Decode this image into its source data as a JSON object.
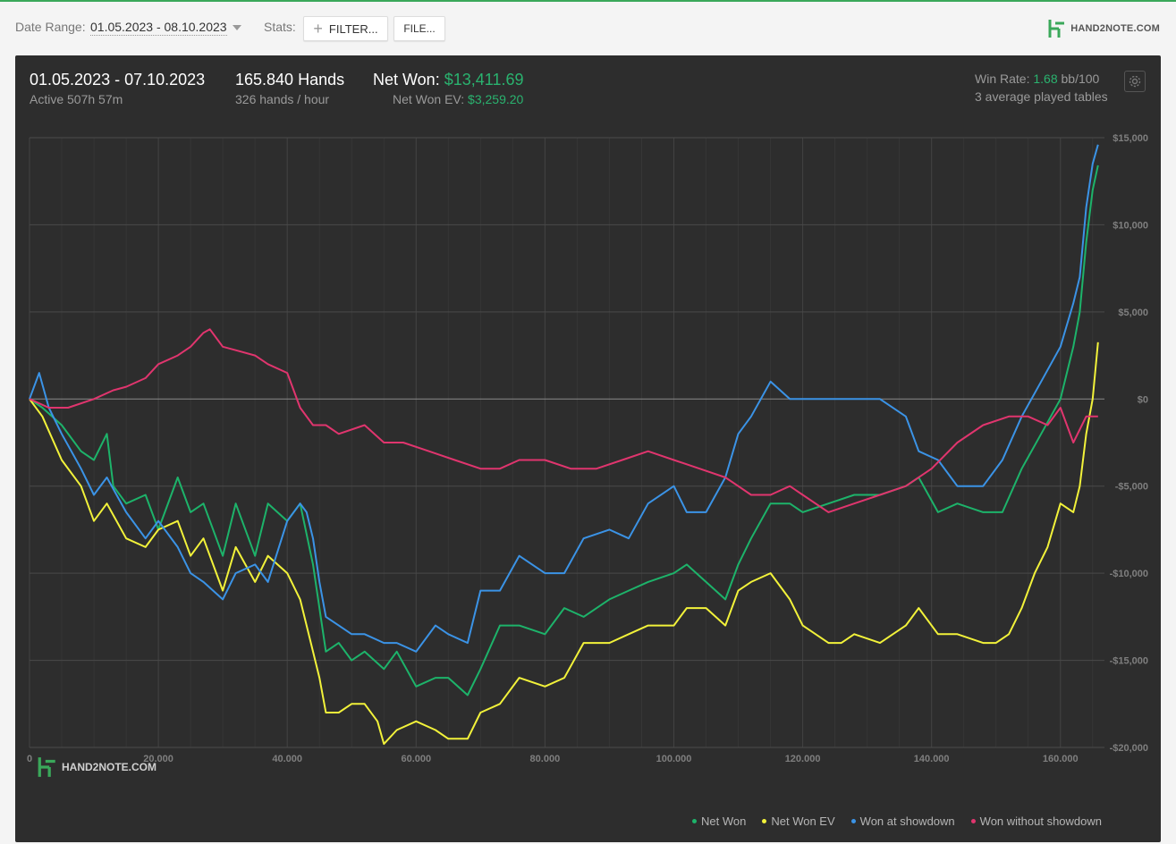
{
  "toolbar": {
    "date_range_label": "Date Range:",
    "date_range_value": "01.05.2023 - 08.10.2023",
    "stats_label": "Stats:",
    "filter_label": "FILTER...",
    "file_label": "FILE...",
    "brand_text": "HAND2NOTE.COM"
  },
  "summary": {
    "date_range": "01.05.2023 - 07.10.2023",
    "active": "Active 507h 57m",
    "hands": "165.840 Hands",
    "hands_per_hour": "326 hands / hour",
    "net_won_label": "Net Won:",
    "net_won_value": "$13,411.69",
    "net_won_ev_label": "Net Won  EV:",
    "net_won_ev_value": "$3,259.20",
    "win_rate_label": "Win Rate:",
    "win_rate_value": "1.68",
    "win_rate_unit": "bb/100",
    "tables_text": "3 average played tables"
  },
  "watermark_text": "HAND2NOTE.COM",
  "chart_data": {
    "type": "line",
    "xlabel": "",
    "ylabel": "",
    "xlim": [
      0,
      166000
    ],
    "ylim": [
      -20000,
      15000
    ],
    "x_ticks": [
      0,
      20000,
      40000,
      60000,
      80000,
      100000,
      120000,
      140000,
      160000
    ],
    "x_tick_labels": [
      "0",
      "20.000",
      "40.000",
      "60.000",
      "80.000",
      "100.000",
      "120.000",
      "140.000",
      "160.000"
    ],
    "y_ticks": [
      15000,
      10000,
      5000,
      0,
      -5000,
      -10000,
      -15000,
      -20000
    ],
    "y_tick_labels": [
      "$15,000",
      "$10,000",
      "$5,000",
      "$0",
      "-$5,000",
      "-$10,000",
      "-$15,000",
      "-$20,000"
    ],
    "grid": true,
    "legend_position": "bottom-right",
    "series": [
      {
        "name": "Net Won",
        "color": "#1db36a",
        "x": [
          0,
          2000,
          5000,
          8000,
          10000,
          12000,
          13000,
          15000,
          18000,
          20000,
          23000,
          25000,
          27000,
          30000,
          32000,
          35000,
          37000,
          40000,
          42000,
          44000,
          45000,
          46000,
          48000,
          50000,
          52000,
          55000,
          57000,
          60000,
          63000,
          65000,
          68000,
          70000,
          73000,
          76000,
          80000,
          83000,
          86000,
          90000,
          93000,
          96000,
          100000,
          102000,
          105000,
          108000,
          110000,
          112000,
          115000,
          118000,
          120000,
          124000,
          128000,
          132000,
          136000,
          138000,
          141000,
          144000,
          148000,
          151000,
          154000,
          157000,
          160000,
          162000,
          163000,
          164000,
          165000,
          165840
        ],
        "y": [
          0,
          -500,
          -1500,
          -3000,
          -3500,
          -2000,
          -5000,
          -6000,
          -5500,
          -7500,
          -4500,
          -6500,
          -6000,
          -9000,
          -6000,
          -9000,
          -6000,
          -7000,
          -6000,
          -9500,
          -12000,
          -14500,
          -14000,
          -15000,
          -14500,
          -15500,
          -14500,
          -16500,
          -16000,
          -16000,
          -17000,
          -15500,
          -13000,
          -13000,
          -13500,
          -12000,
          -12500,
          -11500,
          -11000,
          -10500,
          -10000,
          -9500,
          -10500,
          -11500,
          -9500,
          -8000,
          -6000,
          -6000,
          -6500,
          -6000,
          -5500,
          -5500,
          -5000,
          -4500,
          -6500,
          -6000,
          -6500,
          -6500,
          -4000,
          -2000,
          0,
          3000,
          5000,
          9000,
          12000,
          13412
        ]
      },
      {
        "name": "Net Won  EV",
        "color": "#f2f23a",
        "x": [
          0,
          2000,
          5000,
          8000,
          10000,
          12000,
          15000,
          18000,
          20000,
          23000,
          25000,
          27000,
          30000,
          32000,
          35000,
          37000,
          40000,
          42000,
          44000,
          45000,
          46000,
          48000,
          50000,
          52000,
          54000,
          55000,
          57000,
          60000,
          63000,
          65000,
          68000,
          70000,
          73000,
          76000,
          80000,
          83000,
          86000,
          90000,
          93000,
          96000,
          100000,
          102000,
          105000,
          108000,
          110000,
          112000,
          115000,
          118000,
          120000,
          122000,
          124000,
          126000,
          128000,
          132000,
          136000,
          138000,
          141000,
          144000,
          148000,
          150000,
          152000,
          154000,
          156000,
          158000,
          160000,
          162000,
          163000,
          164000,
          165000,
          165840
        ],
        "y": [
          0,
          -1000,
          -3500,
          -5000,
          -7000,
          -6000,
          -8000,
          -8500,
          -7500,
          -7000,
          -9000,
          -8000,
          -11000,
          -8500,
          -10500,
          -9000,
          -10000,
          -11500,
          -14500,
          -16000,
          -18000,
          -18000,
          -17500,
          -17500,
          -18500,
          -19800,
          -19000,
          -18500,
          -19000,
          -19500,
          -19500,
          -18000,
          -17500,
          -16000,
          -16500,
          -16000,
          -14000,
          -14000,
          -13500,
          -13000,
          -13000,
          -12000,
          -12000,
          -13000,
          -11000,
          -10500,
          -10000,
          -11500,
          -13000,
          -13500,
          -14000,
          -14000,
          -13500,
          -14000,
          -13000,
          -12000,
          -13500,
          -13500,
          -14000,
          -14000,
          -13500,
          -12000,
          -10000,
          -8500,
          -6000,
          -6500,
          -5000,
          -2000,
          0,
          3259
        ]
      },
      {
        "name": "Won at showdown",
        "color": "#3b93e6",
        "x": [
          0,
          1500,
          3000,
          5000,
          8000,
          10000,
          12000,
          15000,
          18000,
          20000,
          23000,
          25000,
          27000,
          30000,
          32000,
          35000,
          37000,
          40000,
          42000,
          43000,
          44000,
          45000,
          46000,
          48000,
          50000,
          52000,
          55000,
          57000,
          60000,
          63000,
          65000,
          68000,
          70000,
          73000,
          76000,
          80000,
          83000,
          86000,
          90000,
          93000,
          96000,
          100000,
          102000,
          105000,
          108000,
          110000,
          112000,
          115000,
          118000,
          120000,
          124000,
          128000,
          132000,
          136000,
          138000,
          141000,
          144000,
          148000,
          151000,
          154000,
          157000,
          160000,
          162000,
          163000,
          164000,
          165000,
          165840
        ],
        "y": [
          0,
          1500,
          -500,
          -2000,
          -4000,
          -5500,
          -4500,
          -6500,
          -8000,
          -7000,
          -8500,
          -10000,
          -10500,
          -11500,
          -10000,
          -9500,
          -10500,
          -7000,
          -6000,
          -6500,
          -8000,
          -10500,
          -12500,
          -13000,
          -13500,
          -13500,
          -14000,
          -14000,
          -14500,
          -13000,
          -13500,
          -14000,
          -11000,
          -11000,
          -9000,
          -10000,
          -10000,
          -8000,
          -7500,
          -8000,
          -6000,
          -5000,
          -6500,
          -6500,
          -4500,
          -2000,
          -1000,
          1000,
          0,
          0,
          0,
          0,
          0,
          -1000,
          -3000,
          -3500,
          -5000,
          -5000,
          -3500,
          -1000,
          1000,
          3000,
          5500,
          7000,
          11000,
          13500,
          14600
        ]
      },
      {
        "name": "Won without showdown",
        "color": "#e0356e",
        "x": [
          0,
          3000,
          6000,
          10000,
          13000,
          15000,
          18000,
          20000,
          23000,
          25000,
          27000,
          28000,
          30000,
          32000,
          35000,
          37000,
          40000,
          42000,
          44000,
          46000,
          48000,
          52000,
          55000,
          58000,
          62000,
          66000,
          70000,
          73000,
          76000,
          80000,
          84000,
          88000,
          92000,
          96000,
          100000,
          104000,
          108000,
          110000,
          112000,
          115000,
          118000,
          120000,
          124000,
          128000,
          132000,
          136000,
          140000,
          144000,
          148000,
          152000,
          155000,
          158000,
          160000,
          162000,
          164000,
          165840
        ],
        "y": [
          0,
          -500,
          -500,
          0,
          500,
          700,
          1200,
          2000,
          2500,
          3000,
          3800,
          4000,
          3000,
          2800,
          2500,
          2000,
          1500,
          -500,
          -1500,
          -1500,
          -2000,
          -1500,
          -2500,
          -2500,
          -3000,
          -3500,
          -4000,
          -4000,
          -3500,
          -3500,
          -4000,
          -4000,
          -3500,
          -3000,
          -3500,
          -4000,
          -4500,
          -5000,
          -5500,
          -5500,
          -5000,
          -5500,
          -6500,
          -6000,
          -5500,
          -5000,
          -4000,
          -2500,
          -1500,
          -1000,
          -1000,
          -1500,
          -500,
          -2500,
          -1000,
          -1000
        ]
      }
    ]
  }
}
